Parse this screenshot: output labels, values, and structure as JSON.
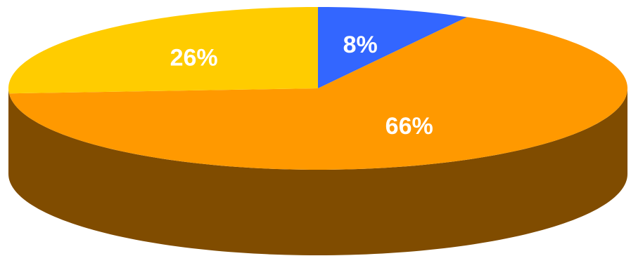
{
  "chart_data": {
    "type": "pie",
    "style": "3d",
    "start_position": "top",
    "direction": "clockwise",
    "slices": [
      {
        "label": "8%",
        "value": 8,
        "color": "#3366FF"
      },
      {
        "label": "66%",
        "value": 66,
        "color": "#FF9900"
      },
      {
        "label": "26%",
        "value": 26,
        "color": "#FFCC00"
      }
    ],
    "side_color": "#804C00",
    "legend": "none"
  }
}
